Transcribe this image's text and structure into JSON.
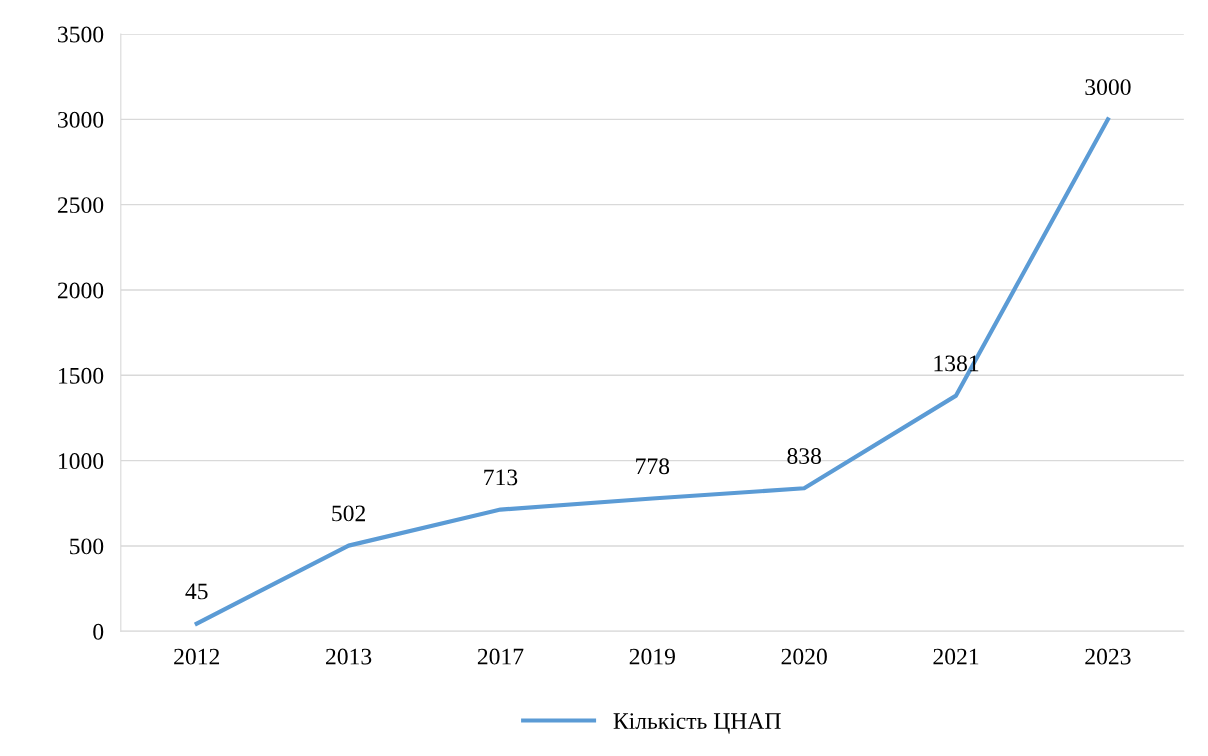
{
  "chart_data": {
    "type": "line",
    "categories": [
      "2012",
      "2013",
      "2017",
      "2019",
      "2020",
      "2021",
      "2023"
    ],
    "series": [
      {
        "name": "Кількість ЦНАП",
        "color": "#5b9bd5",
        "values": [
          45,
          502,
          713,
          778,
          838,
          1381,
          3000
        ]
      }
    ],
    "ylim": [
      0,
      3500
    ],
    "yticks": [
      0,
      500,
      1000,
      1500,
      2000,
      2500,
      3000,
      3500
    ],
    "grid": "y",
    "legend": "bottom",
    "data_labels": true,
    "marker": "none",
    "line_style": "solid"
  }
}
